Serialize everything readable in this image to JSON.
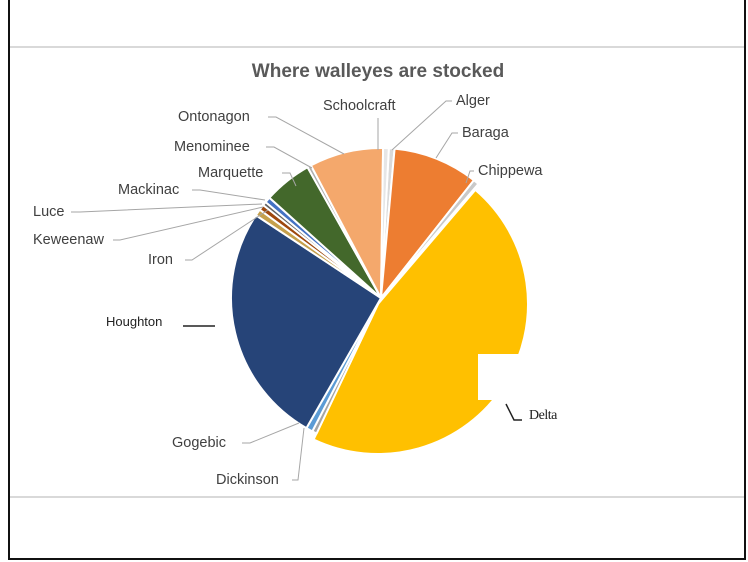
{
  "chart_data": {
    "type": "pie",
    "title": "Where walleyes are stocked",
    "slices": [
      {
        "name": "Alger",
        "value": 0.6,
        "color": "#d9d9d9"
      },
      {
        "name": "Baraga",
        "value": 9.0,
        "color": "#ed7d31"
      },
      {
        "name": "Chippewa",
        "value": 0.6,
        "color": "#c9c9c9"
      },
      {
        "name": "Delta",
        "value": 44.9,
        "color": "#ffc000"
      },
      {
        "name": "Dickinson",
        "value": 0.5,
        "color": "#a5a5a5"
      },
      {
        "name": "Gogebic",
        "value": 0.7,
        "color": "#5b9bd5"
      },
      {
        "name": "Houghton",
        "value": 25.5,
        "color": "#264478"
      },
      {
        "name": "Iron",
        "value": 0.7,
        "color": "#c5a04c"
      },
      {
        "name": "Keweenaw",
        "value": 0.6,
        "color": "#9e480e"
      },
      {
        "name": "Luce",
        "value": 0.4,
        "color": "#636363"
      },
      {
        "name": "Mackinac",
        "value": 0.6,
        "color": "#4472c4"
      },
      {
        "name": "Marquette",
        "value": 5.1,
        "color": "#43682b"
      },
      {
        "name": "Menominee",
        "value": 0.4,
        "color": "#b0b0b0"
      },
      {
        "name": "Ontonagon",
        "value": 7.8,
        "color": "#f4a86c"
      },
      {
        "name": "Schoolcraft",
        "value": 0.6,
        "color": "#e6e6e6"
      }
    ]
  }
}
